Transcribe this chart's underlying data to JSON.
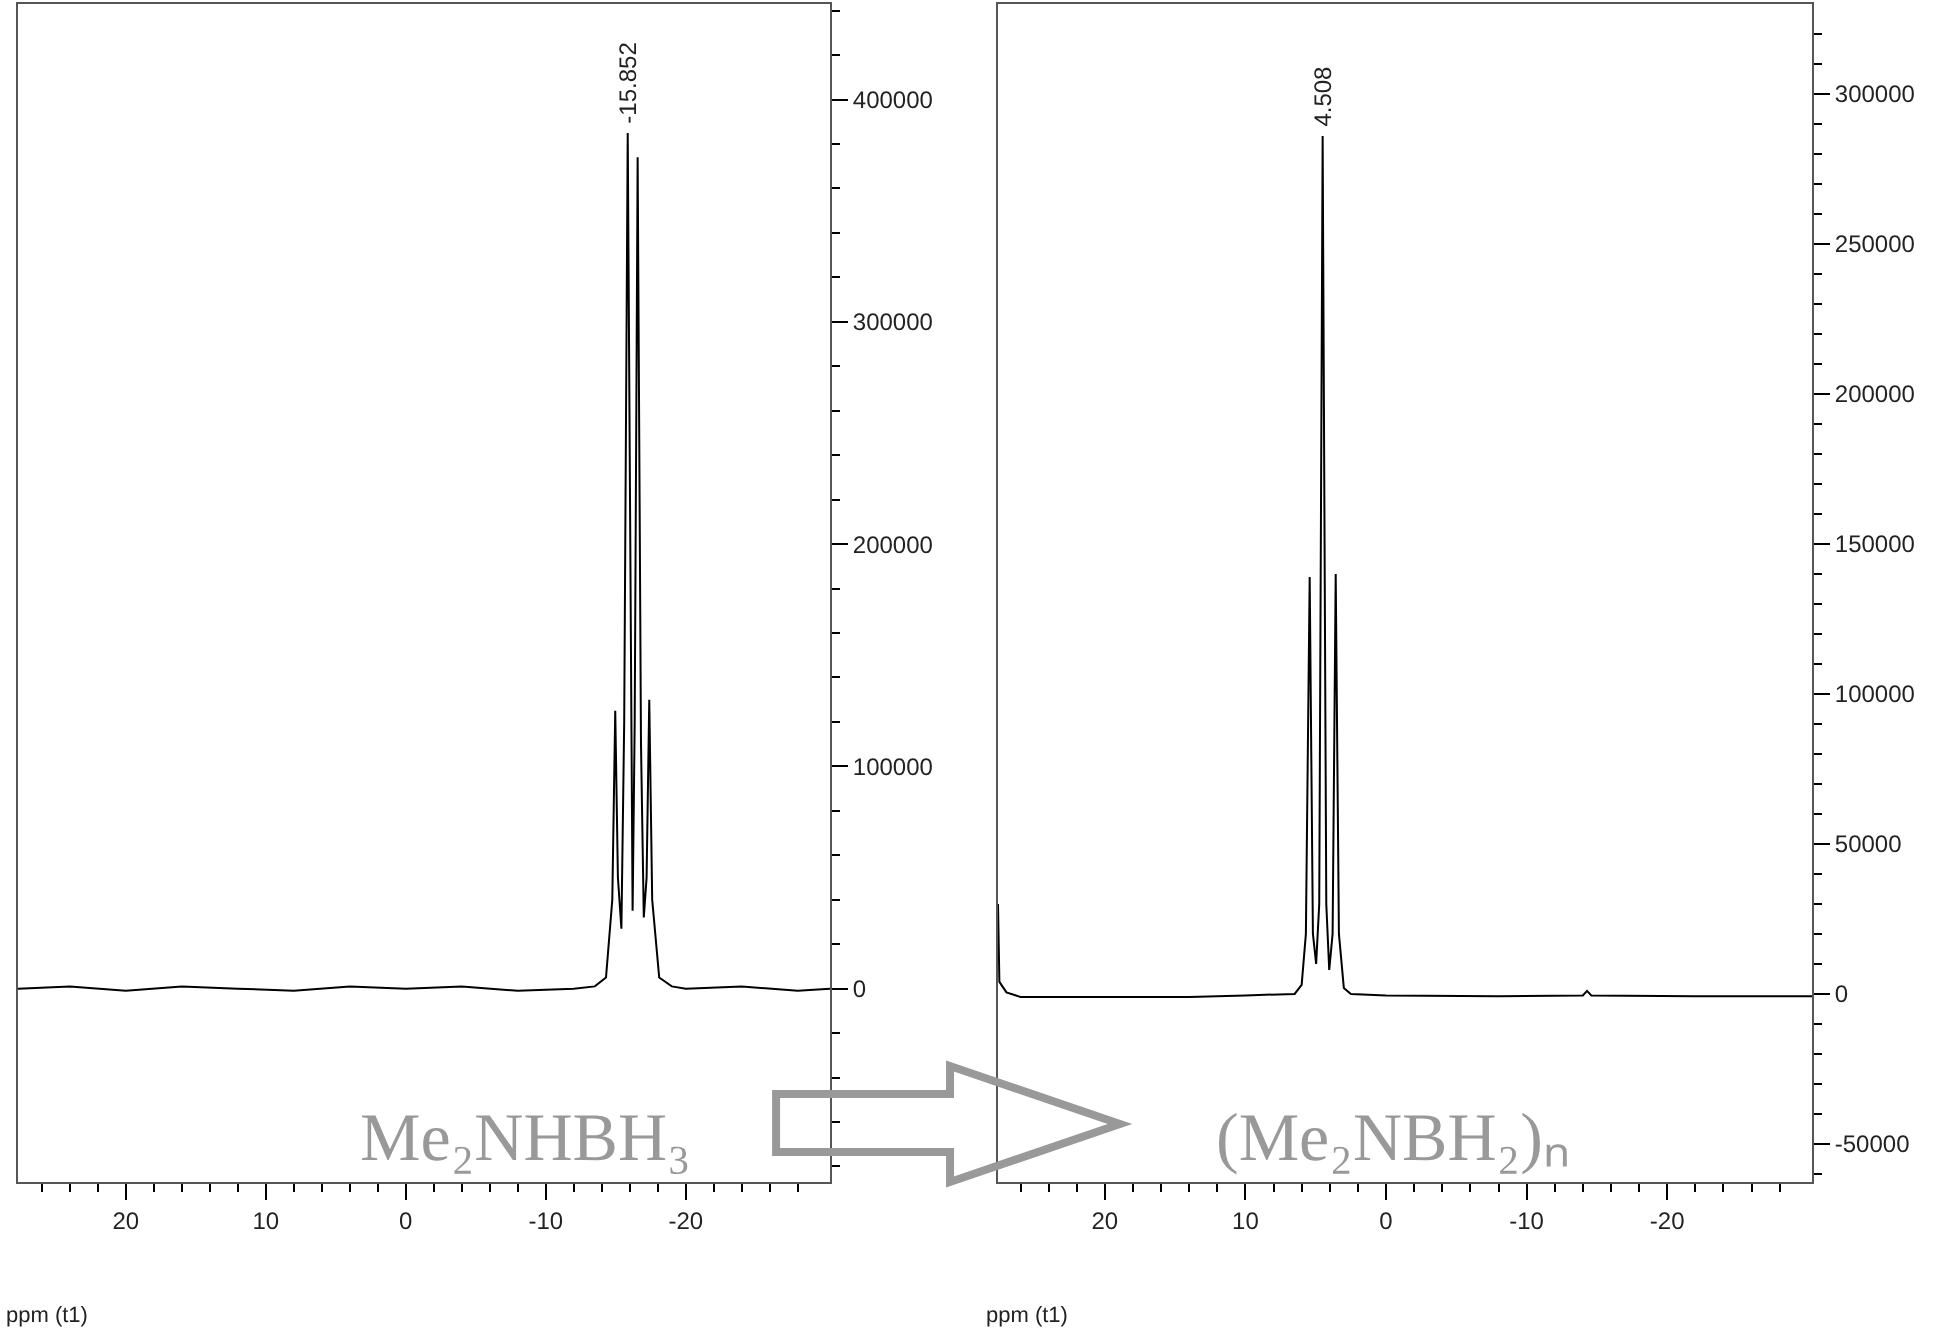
{
  "chart_data": [
    {
      "type": "line",
      "xlabel": "ppm (t1)",
      "xlim": [
        27.7,
        -30.3
      ],
      "ylim": [
        -87000,
        443000
      ],
      "marker": "none",
      "line_style": "solid",
      "xticks": [
        {
          "value": 26,
          "label": null
        },
        {
          "value": 24,
          "label": null
        },
        {
          "value": 22,
          "label": null
        },
        20,
        {
          "value": 18,
          "label": null
        },
        {
          "value": 16,
          "label": null
        },
        {
          "value": 14,
          "label": null
        },
        {
          "value": 12,
          "label": null
        },
        10,
        {
          "value": 8,
          "label": null
        },
        {
          "value": 6,
          "label": null
        },
        {
          "value": 4,
          "label": null
        },
        {
          "value": 2,
          "label": null
        },
        0,
        {
          "value": -2,
          "label": null
        },
        {
          "value": -4,
          "label": null
        },
        {
          "value": -6,
          "label": null
        },
        {
          "value": -8,
          "label": null
        },
        -10,
        {
          "value": -12,
          "label": null
        },
        {
          "value": -14,
          "label": null
        },
        {
          "value": -16,
          "label": null
        },
        {
          "value": -18,
          "label": null
        },
        -20,
        {
          "value": -22,
          "label": null
        },
        {
          "value": -24,
          "label": null
        },
        {
          "value": -26,
          "label": null
        },
        {
          "value": -28,
          "label": null
        }
      ],
      "yticks": [
        {
          "value": -80000,
          "label": null
        },
        {
          "value": -60000,
          "label": null
        },
        {
          "value": -40000,
          "label": null
        },
        {
          "value": -20000,
          "label": null
        },
        0,
        {
          "value": 20000,
          "label": null
        },
        {
          "value": 40000,
          "label": null
        },
        {
          "value": 60000,
          "label": null
        },
        {
          "value": 80000,
          "label": null
        },
        100000,
        {
          "value": 120000,
          "label": null
        },
        {
          "value": 140000,
          "label": null
        },
        {
          "value": 160000,
          "label": null
        },
        {
          "value": 180000,
          "label": null
        },
        200000,
        {
          "value": 220000,
          "label": null
        },
        {
          "value": 240000,
          "label": null
        },
        {
          "value": 260000,
          "label": null
        },
        {
          "value": 280000,
          "label": null
        },
        300000,
        {
          "value": 320000,
          "label": null
        },
        {
          "value": 340000,
          "label": null
        },
        {
          "value": 360000,
          "label": null
        },
        {
          "value": 380000,
          "label": null
        },
        400000,
        {
          "value": 420000,
          "label": null
        },
        {
          "value": 440000,
          "label": null
        }
      ],
      "series": [
        {
          "color": "#000000",
          "x": [
            27.7,
            24,
            20,
            16,
            12,
            8,
            4,
            0,
            -4,
            -8,
            -12,
            -13.5,
            -14.3,
            -14.75,
            -14.96,
            -15.15,
            -15.4,
            -15.6,
            -15.852,
            -16.2,
            -16.35,
            -16.56,
            -16.8,
            -17.0,
            -17.2,
            -17.39,
            -17.6,
            -18.1,
            -19,
            -20,
            -24,
            -28,
            -30.3
          ],
          "values": [
            0,
            1000,
            -1000,
            1000,
            0,
            -1000,
            1000,
            0,
            1000,
            -1000,
            0,
            1000,
            5000,
            40000,
            125000,
            50000,
            27000,
            120000,
            385000,
            35000,
            120000,
            374000,
            110000,
            32000,
            50000,
            130000,
            40000,
            5000,
            1000,
            0,
            1000,
            -1000,
            0
          ]
        }
      ],
      "annotations": [
        {
          "text": "-15.852",
          "x": -15.852,
          "y": 385000
        },
        "Me₂NHBH₃"
      ]
    },
    {
      "type": "line",
      "xlabel": "ppm (t1)",
      "xlim": [
        27.6,
        -30.3
      ],
      "ylim": [
        -62700,
        330000
      ],
      "marker": "none",
      "line_style": "solid",
      "xticks": [
        {
          "value": 26,
          "label": null
        },
        {
          "value": 24,
          "label": null
        },
        {
          "value": 22,
          "label": null
        },
        20,
        {
          "value": 18,
          "label": null
        },
        {
          "value": 16,
          "label": null
        },
        {
          "value": 14,
          "label": null
        },
        {
          "value": 12,
          "label": null
        },
        10,
        {
          "value": 8,
          "label": null
        },
        {
          "value": 6,
          "label": null
        },
        {
          "value": 4,
          "label": null
        },
        {
          "value": 2,
          "label": null
        },
        0,
        {
          "value": -2,
          "label": null
        },
        {
          "value": -4,
          "label": null
        },
        {
          "value": -6,
          "label": null
        },
        {
          "value": -8,
          "label": null
        },
        -10,
        {
          "value": -12,
          "label": null
        },
        {
          "value": -14,
          "label": null
        },
        {
          "value": -16,
          "label": null
        },
        {
          "value": -18,
          "label": null
        },
        -20,
        {
          "value": -22,
          "label": null
        },
        {
          "value": -24,
          "label": null
        },
        {
          "value": -26,
          "label": null
        },
        {
          "value": -28,
          "label": null
        }
      ],
      "yticks": [
        {
          "value": -60000,
          "label": null
        },
        -50000,
        {
          "value": -40000,
          "label": null
        },
        {
          "value": -30000,
          "label": null
        },
        {
          "value": -20000,
          "label": null
        },
        {
          "value": -10000,
          "label": null
        },
        0,
        {
          "value": 10000,
          "label": null
        },
        {
          "value": 20000,
          "label": null
        },
        {
          "value": 30000,
          "label": null
        },
        {
          "value": 40000,
          "label": null
        },
        50000,
        {
          "value": 60000,
          "label": null
        },
        {
          "value": 70000,
          "label": null
        },
        {
          "value": 80000,
          "label": null
        },
        {
          "value": 90000,
          "label": null
        },
        100000,
        {
          "value": 110000,
          "label": null
        },
        {
          "value": 120000,
          "label": null
        },
        {
          "value": 130000,
          "label": null
        },
        {
          "value": 140000,
          "label": null
        },
        150000,
        {
          "value": 160000,
          "label": null
        },
        {
          "value": 170000,
          "label": null
        },
        {
          "value": 180000,
          "label": null
        },
        {
          "value": 190000,
          "label": null
        },
        200000,
        {
          "value": 210000,
          "label": null
        },
        {
          "value": 220000,
          "label": null
        },
        {
          "value": 230000,
          "label": null
        },
        {
          "value": 240000,
          "label": null
        },
        250000,
        {
          "value": 260000,
          "label": null
        },
        {
          "value": 270000,
          "label": null
        },
        {
          "value": 280000,
          "label": null
        },
        {
          "value": 290000,
          "label": null
        },
        300000,
        {
          "value": 310000,
          "label": null
        },
        {
          "value": 320000,
          "label": null
        }
      ],
      "series": [
        {
          "color": "#000000",
          "x": [
            27.6,
            27.5,
            27,
            26,
            20,
            14,
            10,
            6.5,
            6,
            5.7,
            5.43,
            5.2,
            4.97,
            4.75,
            4.508,
            4.25,
            4.04,
            3.8,
            3.58,
            3.35,
            3,
            2.5,
            0,
            -8,
            -14,
            -14.3,
            -14.6,
            -22,
            -30.3
          ],
          "values": [
            30000,
            4000,
            500,
            -1000,
            -1000,
            -1000,
            -500,
            0,
            3000,
            20000,
            139000,
            20000,
            10000,
            30000,
            286000,
            30000,
            8000,
            20000,
            140000,
            20000,
            2000,
            0,
            -500,
            -800,
            -500,
            1000,
            -500,
            -800,
            -800
          ]
        }
      ],
      "annotations": [
        {
          "text": "4.508",
          "x": 4.508,
          "y": 286000
        },
        "(Me₂NBH₂)ₙ"
      ]
    }
  ]
}
